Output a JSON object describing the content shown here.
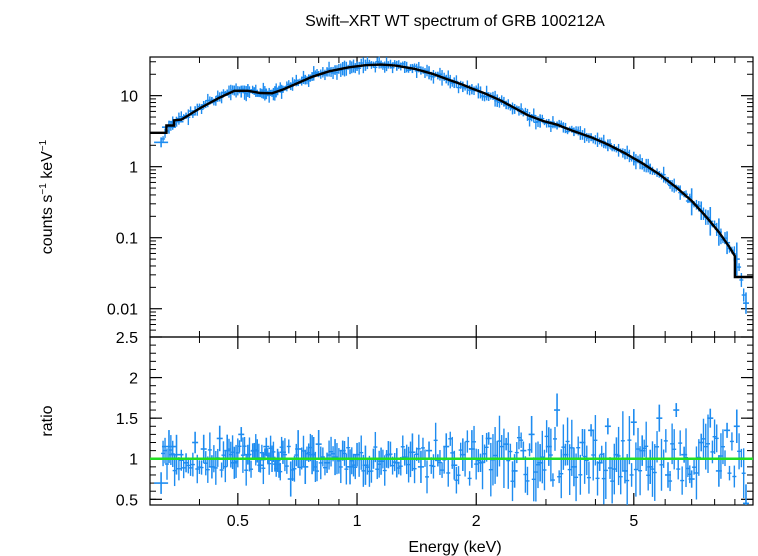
{
  "chart_data": [
    {
      "panel": "spectrum",
      "type": "scatter",
      "title": "Swift–XRT WT spectrum of GRB 100212A",
      "xlabel": "",
      "ylabel_parts": [
        "counts s",
        "−1",
        " keV",
        "−1"
      ],
      "xscale": "log",
      "yscale": "log",
      "xlim": [
        0.3,
        10
      ],
      "ylim": [
        0.004,
        35
      ],
      "x_ticks": [
        0.5,
        1,
        2,
        5
      ],
      "y_ticks": [
        0.01,
        0.1,
        1,
        10
      ],
      "y_tick_labels": [
        "0.01",
        "0.1",
        "1",
        "10"
      ],
      "series": [
        {
          "role": "data",
          "color": "#1e8cf0",
          "points": [
            [
              0.32,
              2.2
            ],
            [
              0.335,
              3.6
            ],
            [
              0.35,
              4.3
            ],
            [
              0.37,
              5.2
            ],
            [
              0.39,
              6.1
            ],
            [
              0.41,
              7.4
            ],
            [
              0.43,
              8.6
            ],
            [
              0.45,
              9.6
            ],
            [
              0.47,
              11.0
            ],
            [
              0.49,
              11.8
            ],
            [
              0.51,
              11.4
            ],
            [
              0.53,
              11.8
            ],
            [
              0.55,
              11.6
            ],
            [
              0.57,
              11.0
            ],
            [
              0.59,
              10.6
            ],
            [
              0.61,
              10.8
            ],
            [
              0.63,
              11.4
            ],
            [
              0.65,
              12.3
            ],
            [
              0.68,
              13.6
            ],
            [
              0.71,
              15.2
            ],
            [
              0.74,
              16.8
            ],
            [
              0.77,
              18.6
            ],
            [
              0.8,
              20.1
            ],
            [
              0.84,
              21.6
            ],
            [
              0.88,
              22.9
            ],
            [
              0.92,
              24.0
            ],
            [
              0.96,
              25.1
            ],
            [
              1.0,
              26.0
            ],
            [
              1.05,
              26.8
            ],
            [
              1.1,
              27.3
            ],
            [
              1.15,
              27.5
            ],
            [
              1.2,
              27.1
            ],
            [
              1.26,
              26.3
            ],
            [
              1.32,
              25.3
            ],
            [
              1.38,
              24.1
            ],
            [
              1.45,
              22.6
            ],
            [
              1.52,
              21.0
            ],
            [
              1.6,
              19.2
            ],
            [
              1.68,
              17.1
            ],
            [
              1.76,
              15.2
            ],
            [
              1.85,
              13.3
            ],
            [
              1.95,
              12.3
            ],
            [
              2.05,
              11.1
            ],
            [
              2.15,
              9.7
            ],
            [
              2.26,
              8.5
            ],
            [
              2.38,
              7.4
            ],
            [
              2.5,
              6.5
            ],
            [
              2.63,
              5.7
            ],
            [
              2.76,
              4.9
            ],
            [
              2.9,
              4.4
            ],
            [
              3.05,
              4.1
            ],
            [
              3.2,
              3.8
            ],
            [
              3.36,
              3.5
            ],
            [
              3.53,
              3.1
            ],
            [
              3.71,
              2.8
            ],
            [
              3.9,
              2.6
            ],
            [
              4.1,
              2.3
            ],
            [
              4.3,
              2.0
            ],
            [
              4.52,
              1.75
            ],
            [
              4.75,
              1.5
            ],
            [
              5.0,
              1.3
            ],
            [
              5.25,
              1.1
            ],
            [
              5.5,
              0.93
            ],
            [
              5.8,
              0.78
            ],
            [
              6.1,
              0.63
            ],
            [
              6.4,
              0.5
            ],
            [
              6.7,
              0.41
            ],
            [
              7.0,
              0.32
            ],
            [
              7.4,
              0.24
            ],
            [
              7.8,
              0.17
            ],
            [
              8.2,
              0.12
            ],
            [
              8.6,
              0.085
            ],
            [
              9.1,
              0.05
            ],
            [
              9.6,
              0.012
            ]
          ]
        },
        {
          "role": "model",
          "color": "#000000",
          "points": [
            [
              0.3,
              3.0
            ],
            [
              0.33,
              3.0
            ],
            [
              0.33,
              3.8
            ],
            [
              0.345,
              3.8
            ],
            [
              0.345,
              4.5
            ],
            [
              0.36,
              4.6
            ],
            [
              0.4,
              6.6
            ],
            [
              0.45,
              9.4
            ],
            [
              0.49,
              11.7
            ],
            [
              0.53,
              11.7
            ],
            [
              0.57,
              10.9
            ],
            [
              0.61,
              10.8
            ],
            [
              0.65,
              12.2
            ],
            [
              0.7,
              14.6
            ],
            [
              0.77,
              18.4
            ],
            [
              0.85,
              22.0
            ],
            [
              0.95,
              25.0
            ],
            [
              1.05,
              26.8
            ],
            [
              1.15,
              27.4
            ],
            [
              1.25,
              26.5
            ],
            [
              1.4,
              23.8
            ],
            [
              1.55,
              20.3
            ],
            [
              1.7,
              16.8
            ],
            [
              1.85,
              14.2
            ],
            [
              1.95,
              12.6
            ],
            [
              2.1,
              10.8
            ],
            [
              2.3,
              8.6
            ],
            [
              2.5,
              6.7
            ],
            [
              2.7,
              5.3
            ],
            [
              2.95,
              4.4
            ],
            [
              3.2,
              3.9
            ],
            [
              3.5,
              3.2
            ],
            [
              3.9,
              2.6
            ],
            [
              4.3,
              2.05
            ],
            [
              4.75,
              1.55
            ],
            [
              5.25,
              1.12
            ],
            [
              5.8,
              0.78
            ],
            [
              6.4,
              0.51
            ],
            [
              7.0,
              0.33
            ],
            [
              7.6,
              0.2
            ],
            [
              8.2,
              0.12
            ],
            [
              8.7,
              0.075
            ],
            [
              9.0,
              0.055
            ],
            [
              9.0,
              0.028
            ],
            [
              10.0,
              0.028
            ]
          ]
        }
      ]
    },
    {
      "panel": "ratio",
      "type": "scatter",
      "title": "",
      "xlabel": "Energy (keV)",
      "ylabel": "ratio",
      "xscale": "log",
      "xlim": [
        0.3,
        10
      ],
      "ylim": [
        0.43,
        2.5
      ],
      "x_ticks": [
        0.5,
        1,
        2,
        5
      ],
      "x_tick_labels": [
        "0.5",
        "1",
        "2",
        "5"
      ],
      "y_ticks": [
        0.5,
        1,
        1.5,
        2,
        2.5
      ],
      "y_tick_labels": [
        "0.5",
        "1",
        "1.5",
        "2",
        "2.5"
      ],
      "reference_line": {
        "y": 1,
        "color": "#22dd22"
      },
      "series": [
        {
          "role": "data",
          "color": "#1e8cf0",
          "points": [
            [
              0.32,
              0.7
            ],
            [
              0.335,
              1.15
            ],
            [
              0.35,
              1.05
            ],
            [
              0.37,
              0.95
            ],
            [
              0.39,
              1.2
            ],
            [
              0.41,
              1.12
            ],
            [
              0.43,
              0.9
            ],
            [
              0.45,
              1.25
            ],
            [
              0.47,
              1.1
            ],
            [
              0.49,
              0.95
            ],
            [
              0.51,
              1.3
            ],
            [
              0.53,
              1.05
            ],
            [
              0.55,
              1.1
            ],
            [
              0.57,
              0.92
            ],
            [
              0.59,
              1.15
            ],
            [
              0.61,
              1.0
            ],
            [
              0.63,
              0.98
            ],
            [
              0.65,
              1.08
            ],
            [
              0.68,
              0.75
            ],
            [
              0.71,
              1.12
            ],
            [
              0.74,
              0.9
            ],
            [
              0.77,
              1.05
            ],
            [
              0.8,
              1.18
            ],
            [
              0.84,
              0.95
            ],
            [
              0.88,
              1.02
            ],
            [
              0.92,
              1.1
            ],
            [
              0.96,
              0.9
            ],
            [
              1.0,
              1.05
            ],
            [
              1.05,
              0.92
            ],
            [
              1.1,
              1.0
            ],
            [
              1.15,
              0.97
            ],
            [
              1.2,
              1.05
            ],
            [
              1.26,
              0.95
            ],
            [
              1.32,
              1.02
            ],
            [
              1.38,
              1.08
            ],
            [
              1.45,
              0.9
            ],
            [
              1.52,
              1.1
            ],
            [
              1.6,
              0.98
            ],
            [
              1.68,
              1.15
            ],
            [
              1.76,
              0.92
            ],
            [
              1.85,
              1.05
            ],
            [
              1.95,
              1.12
            ],
            [
              2.05,
              0.95
            ],
            [
              2.15,
              1.25
            ],
            [
              2.26,
              1.0
            ],
            [
              2.38,
              1.18
            ],
            [
              2.5,
              0.85
            ],
            [
              2.63,
              1.1
            ],
            [
              2.76,
              1.3
            ],
            [
              2.9,
              0.95
            ],
            [
              3.05,
              1.15
            ],
            [
              3.2,
              1.6
            ],
            [
              3.36,
              1.05
            ],
            [
              3.53,
              0.9
            ],
            [
              3.71,
              1.2
            ],
            [
              3.9,
              1.35
            ],
            [
              4.1,
              0.95
            ],
            [
              4.3,
              1.4
            ],
            [
              4.52,
              1.05
            ],
            [
              4.75,
              0.85
            ],
            [
              5.0,
              1.45
            ],
            [
              5.25,
              1.1
            ],
            [
              5.5,
              0.9
            ],
            [
              5.8,
              1.5
            ],
            [
              6.1,
              0.8
            ],
            [
              6.4,
              1.6
            ],
            [
              6.7,
              1.05
            ],
            [
              7.0,
              0.75
            ],
            [
              7.4,
              1.2
            ],
            [
              7.8,
              1.5
            ],
            [
              8.2,
              0.85
            ],
            [
              8.6,
              1.35
            ],
            [
              9.1,
              1.4
            ],
            [
              9.6,
              0.45
            ]
          ]
        }
      ]
    }
  ]
}
